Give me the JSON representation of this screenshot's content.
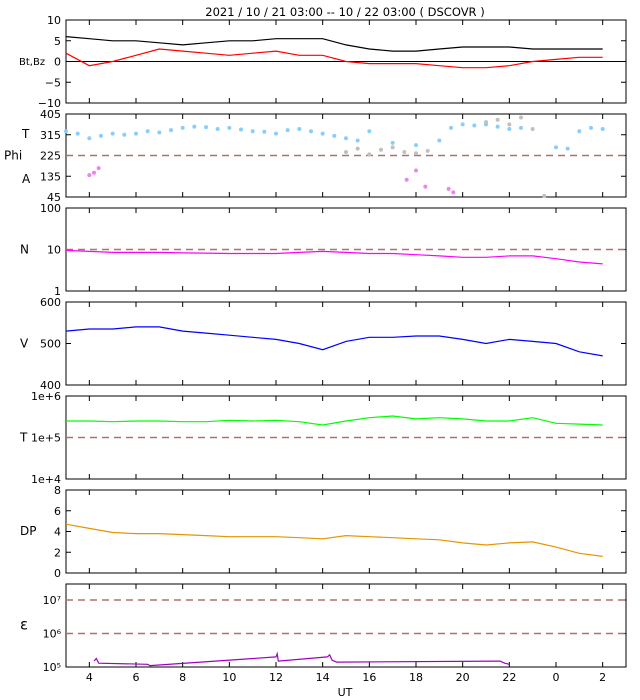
{
  "title": "2021 / 10 / 21   03:00 -- 10 / 22   03:00 ( DSCOVR )",
  "x_axis": {
    "label": "UT",
    "tick_labels": [
      "4",
      "6",
      "8",
      "10",
      "12",
      "14",
      "16",
      "18",
      "20",
      "22",
      "0",
      "2"
    ],
    "tick_hours": [
      4,
      6,
      8,
      10,
      12,
      14,
      16,
      18,
      20,
      22,
      24,
      26
    ],
    "range_hours": [
      3,
      27
    ]
  },
  "colors": {
    "bt": "#000000",
    "bz": "#ff0000",
    "theta": "#87cefa",
    "phi_gray": "#c0c0c0",
    "phi_magenta": "#ee82ee",
    "density": "#ff00ff",
    "speed": "#0000ff",
    "temperature": "#00ff00",
    "pressure": "#e69500",
    "epsilon": "#a000c0",
    "reference": "#b07070"
  },
  "chart_data": [
    {
      "type": "line",
      "panel": "bt_bz",
      "ylabel": "Bt,Bz",
      "ylim": [
        -10,
        10
      ],
      "yticks": [
        -10,
        -5,
        0,
        5,
        10
      ],
      "ytick_labels": [
        "−10",
        "−5",
        "0",
        "5",
        "10"
      ],
      "zero_line": 0,
      "series": [
        {
          "key": "bt",
          "x": [
            3,
            4,
            5,
            6,
            7,
            8,
            9,
            10,
            11,
            12,
            13,
            14,
            15,
            16,
            17,
            18,
            19,
            20,
            21,
            22,
            23,
            24,
            25,
            26
          ],
          "y": [
            6,
            5.5,
            5,
            5,
            4.5,
            4,
            4.5,
            5,
            5,
            5.5,
            5.5,
            5.5,
            4,
            3,
            2.5,
            2.5,
            3,
            3.5,
            3.5,
            3.5,
            3,
            3,
            3,
            3
          ]
        },
        {
          "key": "bz",
          "x": [
            3,
            4,
            5,
            6,
            7,
            8,
            9,
            10,
            11,
            12,
            13,
            14,
            15,
            16,
            17,
            18,
            19,
            20,
            21,
            22,
            23,
            24,
            25,
            26
          ],
          "y": [
            2,
            -1,
            0,
            1.5,
            3,
            2.5,
            2,
            1.5,
            2,
            2.5,
            1.5,
            1.5,
            0,
            -0.5,
            -0.5,
            -0.5,
            -1,
            -1.5,
            -1.5,
            -1,
            0,
            0.5,
            1,
            1
          ]
        }
      ]
    },
    {
      "type": "scatter",
      "panel": "theta_phi",
      "ylabels": [
        "T",
        "Phi",
        "A"
      ],
      "ylim": [
        45,
        405
      ],
      "yticks": [
        45,
        135,
        225,
        315,
        405
      ],
      "ytick_labels": [
        "45",
        "135",
        "225",
        "315",
        "405"
      ],
      "reference_line": 225,
      "series": [
        {
          "key": "theta",
          "x": [
            3,
            3.5,
            4,
            4.5,
            5,
            5.5,
            6,
            6.5,
            7,
            7.5,
            8,
            8.5,
            9,
            9.5,
            10,
            10.5,
            11,
            11.5,
            12,
            12.5,
            13,
            13.5,
            14,
            14.5,
            15,
            15.5,
            16,
            17,
            18,
            19,
            19.5,
            20,
            20.5,
            21,
            21.5,
            22,
            22.5,
            24,
            24.5,
            25,
            25.5,
            26
          ],
          "y": [
            330,
            320,
            300,
            310,
            320,
            315,
            320,
            330,
            325,
            335,
            345,
            350,
            348,
            340,
            345,
            338,
            330,
            328,
            320,
            335,
            340,
            330,
            320,
            310,
            300,
            290,
            330,
            280,
            270,
            290,
            345,
            360,
            355,
            360,
            350,
            340,
            345,
            260,
            255,
            330,
            345,
            340
          ]
        },
        {
          "key": "phi_gray",
          "x": [
            15,
            15.5,
            16,
            16.5,
            17,
            17.5,
            18,
            18.5,
            21,
            21.5,
            22,
            22.5,
            23,
            23.5
          ],
          "y": [
            240,
            255,
            230,
            250,
            260,
            240,
            235,
            245,
            370,
            380,
            360,
            390,
            340,
            50
          ]
        },
        {
          "key": "phi_magenta",
          "x": [
            4,
            4.2,
            4.4,
            17.6,
            18,
            18.4,
            19.4,
            19.6
          ],
          "y": [
            140,
            150,
            170,
            120,
            160,
            90,
            80,
            65
          ]
        }
      ]
    },
    {
      "type": "line",
      "panel": "density",
      "ylabel": "N",
      "scale": "log",
      "ylim": [
        1,
        100
      ],
      "yticks": [
        1,
        10,
        100
      ],
      "ytick_labels": [
        "1",
        "10",
        "100"
      ],
      "reference_line": 10,
      "series": [
        {
          "key": "density",
          "x": [
            3,
            4,
            5,
            6,
            7,
            8,
            9,
            10,
            11,
            12,
            13,
            14,
            15,
            16,
            17,
            18,
            19,
            20,
            21,
            22,
            23,
            24,
            25,
            26
          ],
          "y": [
            9.5,
            9,
            8.5,
            8.5,
            8.5,
            8.3,
            8.2,
            8,
            8,
            8,
            8.5,
            9,
            8.5,
            8,
            8,
            7.5,
            7,
            6.5,
            6.5,
            7,
            7,
            6,
            5,
            4.5
          ]
        }
      ]
    },
    {
      "type": "line",
      "panel": "speed",
      "ylabel": "V",
      "ylim": [
        400,
        600
      ],
      "yticks": [
        400,
        500,
        600
      ],
      "ytick_labels": [
        "400",
        "500",
        "600"
      ],
      "series": [
        {
          "key": "speed",
          "x": [
            3,
            4,
            5,
            6,
            7,
            8,
            9,
            10,
            11,
            12,
            13,
            14,
            15,
            16,
            17,
            18,
            19,
            20,
            21,
            22,
            23,
            24,
            25,
            26
          ],
          "y": [
            530,
            535,
            535,
            540,
            540,
            530,
            525,
            520,
            515,
            510,
            500,
            485,
            505,
            515,
            515,
            518,
            518,
            510,
            500,
            510,
            505,
            500,
            480,
            470
          ]
        }
      ]
    },
    {
      "type": "line",
      "panel": "temperature",
      "ylabel": "T",
      "scale": "log",
      "ylim": [
        10000,
        1000000
      ],
      "yticks": [
        10000,
        100000,
        1000000
      ],
      "ytick_labels": [
        "1e+4",
        "1e+5",
        "1e+6"
      ],
      "reference_line": 100000,
      "series": [
        {
          "key": "temperature",
          "x": [
            3,
            4,
            5,
            6,
            7,
            8,
            9,
            10,
            11,
            12,
            13,
            14,
            15,
            16,
            17,
            18,
            19,
            20,
            21,
            22,
            23,
            24,
            25,
            26
          ],
          "y": [
            250000,
            250000,
            240000,
            250000,
            250000,
            240000,
            240000,
            260000,
            250000,
            260000,
            240000,
            200000,
            250000,
            300000,
            330000,
            280000,
            300000,
            280000,
            250000,
            250000,
            300000,
            220000,
            210000,
            200000
          ]
        }
      ]
    },
    {
      "type": "line",
      "panel": "pressure",
      "ylabel": "DP",
      "ylim": [
        0,
        8
      ],
      "yticks": [
        0,
        2,
        4,
        6,
        8
      ],
      "ytick_labels": [
        "0",
        "2",
        "4",
        "6",
        "8"
      ],
      "series": [
        {
          "key": "pressure",
          "x": [
            3,
            4,
            5,
            6,
            7,
            8,
            9,
            10,
            11,
            12,
            13,
            14,
            15,
            16,
            17,
            18,
            19,
            20,
            21,
            22,
            23,
            24,
            25,
            26
          ],
          "y": [
            4.7,
            4.3,
            3.9,
            3.8,
            3.8,
            3.7,
            3.6,
            3.5,
            3.5,
            3.5,
            3.4,
            3.3,
            3.6,
            3.5,
            3.4,
            3.3,
            3.2,
            2.9,
            2.7,
            2.9,
            3,
            2.5,
            1.9,
            1.6
          ]
        }
      ]
    },
    {
      "type": "line",
      "panel": "epsilon",
      "ylabel": "ε",
      "scale": "log",
      "ylim": [
        100000,
        30000000
      ],
      "yticks": [
        100000,
        1000000,
        10000000
      ],
      "ytick_labels": [
        "10⁵",
        "10⁶",
        "10⁷"
      ],
      "reference_lines": [
        1000000,
        10000000
      ],
      "series": [
        {
          "key": "epsilon",
          "x": [
            4.2,
            4.3,
            4.4,
            6.5,
            6.6,
            12,
            12.05,
            12.1,
            14.2,
            14.3,
            14.4,
            14.6,
            21.6,
            21.8,
            22
          ],
          "y": [
            150000,
            180000,
            130000,
            120000,
            110000,
            200000,
            250000,
            150000,
            200000,
            230000,
            160000,
            140000,
            150000,
            130000,
            120000
          ]
        }
      ]
    }
  ]
}
